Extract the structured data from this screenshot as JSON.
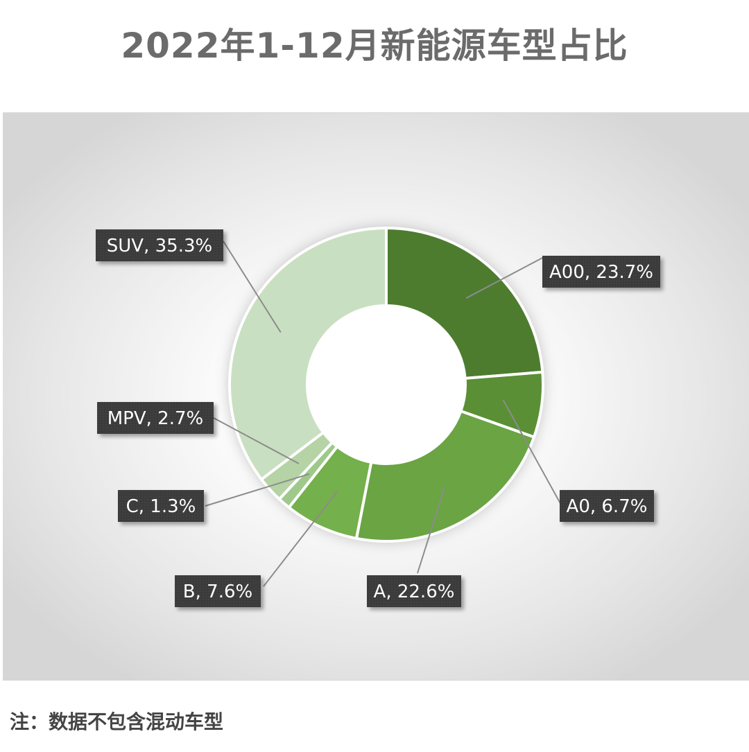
{
  "title": "2022年1-12月新能源车型占比",
  "note": "注：数据不包含混动车型",
  "chart_data": {
    "type": "pie",
    "title": "2022年1-12月新能源车型占比",
    "style": "donut",
    "slices": [
      {
        "name": "A00",
        "value": 23.7,
        "label": "A00, 23.7%",
        "color": "#4d7c2f"
      },
      {
        "name": "A0",
        "value": 6.7,
        "label": "A0, 6.7%",
        "color": "#5a8f36"
      },
      {
        "name": "A",
        "value": 22.6,
        "label": "A, 22.6%",
        "color": "#6aa443"
      },
      {
        "name": "B",
        "value": 7.6,
        "label": "B, 7.6%",
        "color": "#74b04b"
      },
      {
        "name": "C",
        "value": 1.3,
        "label": "C, 1.3%",
        "color": "#9fc98a"
      },
      {
        "name": "MPV",
        "value": 2.7,
        "label": "MPV, 2.7%",
        "color": "#b5d3a5"
      },
      {
        "name": "SUV",
        "value": 35.3,
        "label": "SUV, 35.3%",
        "color": "#c9dfc1"
      }
    ],
    "label_style": {
      "box_color": "#3a3a3a",
      "text_color": "#ffffff",
      "leader_color": "#8c8c8c"
    }
  }
}
